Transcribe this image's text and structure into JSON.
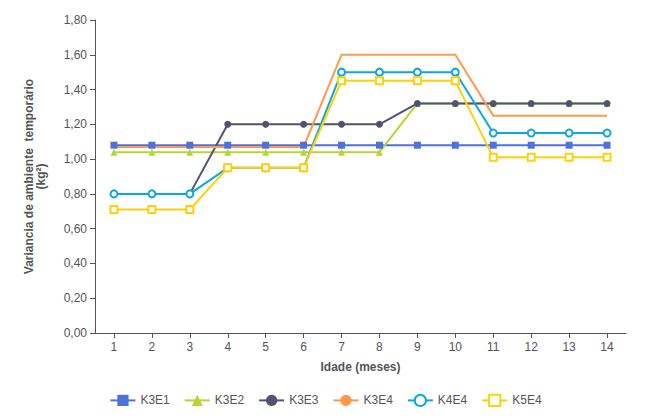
{
  "chart_data": {
    "type": "line",
    "xlabel": "Idade (meses)",
    "ylabel": "Variancia de ambiente  temporário\n(kg²)",
    "x": [
      1,
      2,
      3,
      4,
      5,
      6,
      7,
      8,
      9,
      10,
      11,
      12,
      13,
      14
    ],
    "series": [
      {
        "name": "K3E1",
        "marker": "square",
        "values": [
          1.08,
          1.08,
          1.08,
          1.08,
          1.08,
          1.08,
          1.08,
          1.08,
          1.08,
          1.08,
          1.08,
          1.08,
          1.08,
          1.08
        ]
      },
      {
        "name": "K3E2",
        "marker": "triangle",
        "values": [
          1.04,
          1.04,
          1.04,
          1.04,
          1.04,
          1.04,
          1.04,
          1.04,
          1.32,
          1.32,
          1.32,
          1.32,
          1.32,
          1.32
        ]
      },
      {
        "name": "K3E3",
        "marker": "circle",
        "values": [
          0.8,
          0.8,
          0.8,
          1.2,
          1.2,
          1.2,
          1.2,
          1.2,
          1.32,
          1.32,
          1.32,
          1.32,
          1.32,
          1.32
        ]
      },
      {
        "name": "K3E4",
        "marker": "none",
        "values": [
          1.07,
          1.07,
          1.07,
          1.07,
          1.07,
          1.07,
          1.6,
          1.6,
          1.6,
          1.6,
          1.25,
          1.25,
          1.25,
          1.25
        ]
      },
      {
        "name": "K4E4",
        "marker": "open circle",
        "values": [
          0.8,
          0.8,
          0.8,
          0.95,
          0.95,
          0.95,
          1.5,
          1.5,
          1.5,
          1.5,
          1.15,
          1.15,
          1.15,
          1.15
        ]
      },
      {
        "name": "K5E4",
        "marker": "open square",
        "values": [
          0.71,
          0.71,
          0.71,
          0.95,
          0.95,
          0.95,
          1.45,
          1.45,
          1.45,
          1.45,
          1.01,
          1.01,
          1.01,
          1.01
        ]
      }
    ],
    "xlim": [
      0.5,
      14.5
    ],
    "xticks": [
      1,
      2,
      3,
      4,
      5,
      6,
      7,
      8,
      9,
      10,
      11,
      12,
      13,
      14
    ],
    "ylim": [
      0.0,
      1.8
    ],
    "yticks": [
      {
        "value": 0.0,
        "label": "0,00"
      },
      {
        "value": 0.2,
        "label": "0,20"
      },
      {
        "value": 0.4,
        "label": "0,40"
      },
      {
        "value": 0.6,
        "label": "0,60"
      },
      {
        "value": 0.8,
        "label": "0,80"
      },
      {
        "value": 1.0,
        "label": "1,00"
      },
      {
        "value": 1.2,
        "label": "1,20"
      },
      {
        "value": 1.4,
        "label": "1,40"
      },
      {
        "value": 1.6,
        "label": "1,60"
      },
      {
        "value": 1.8,
        "label": "1,80"
      }
    ],
    "grid": false,
    "legend": "bottom"
  }
}
